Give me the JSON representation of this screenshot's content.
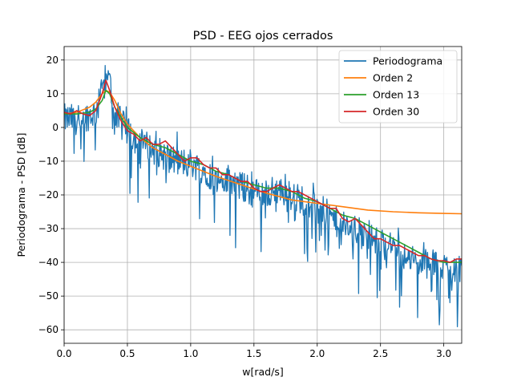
{
  "chart_data": {
    "type": "line",
    "title": "PSD - EEG ojos cerrados",
    "xlabel": "w[rad/s]",
    "ylabel": "Periodograma - PSD [dB]",
    "xlim": [
      0,
      3.1416
    ],
    "ylim": [
      -64,
      24
    ],
    "xticks": [
      0.0,
      0.5,
      1.0,
      1.5,
      2.0,
      2.5,
      3.0
    ],
    "xtick_labels": [
      "0.0",
      "0.5",
      "1.0",
      "1.5",
      "2.0",
      "2.5",
      "3.0"
    ],
    "yticks": [
      20,
      10,
      0,
      -10,
      -20,
      -30,
      -40,
      -50,
      -60
    ],
    "ytick_labels": [
      "20",
      "10",
      "0",
      "−10",
      "−20",
      "−30",
      "−40",
      "−50",
      "−60"
    ],
    "grid": true,
    "legend_position": "top-right",
    "series": [
      {
        "name": "Periodograma",
        "color": "#1f77b4",
        "style": "noisy",
        "x": [
          0.0,
          0.1,
          0.2,
          0.25,
          0.3,
          0.33,
          0.36,
          0.4,
          0.5,
          0.6,
          0.7,
          0.8,
          0.9,
          1.0,
          1.1,
          1.2,
          1.3,
          1.4,
          1.5,
          1.6,
          1.7,
          1.8,
          1.9,
          2.0,
          2.1,
          2.2,
          2.3,
          2.4,
          2.5,
          2.6,
          2.7,
          2.8,
          2.9,
          3.0,
          3.1416
        ],
        "y": [
          3,
          3,
          4,
          5,
          10,
          12,
          10,
          5,
          -1,
          -4,
          -6,
          -8,
          -10,
          -10,
          -12,
          -15,
          -16,
          -17,
          -19,
          -19,
          -18,
          -20,
          -21,
          -23,
          -26,
          -29,
          -30,
          -32,
          -34,
          -35,
          -38,
          -40,
          -40,
          -41,
          -41
        ]
      },
      {
        "name": "Orden 2",
        "color": "#ff7f0e",
        "x": [
          0.0,
          0.1,
          0.2,
          0.25,
          0.3,
          0.33,
          0.36,
          0.4,
          0.45,
          0.5,
          0.6,
          0.7,
          0.8,
          0.9,
          1.0,
          1.2,
          1.4,
          1.6,
          1.8,
          2.0,
          2.2,
          2.4,
          2.6,
          2.8,
          3.0,
          3.1416
        ],
        "y": [
          4,
          4.5,
          6,
          7.5,
          10,
          11,
          10.5,
          8,
          4,
          1,
          -3,
          -6,
          -8,
          -10,
          -11.5,
          -14.5,
          -17,
          -19.5,
          -21.5,
          -22.5,
          -23.5,
          -24.5,
          -25,
          -25.3,
          -25.5,
          -25.6
        ]
      },
      {
        "name": "Orden 13",
        "color": "#2ca02c",
        "x": [
          0.0,
          0.1,
          0.2,
          0.25,
          0.3,
          0.33,
          0.36,
          0.4,
          0.45,
          0.5,
          0.6,
          0.7,
          0.8,
          0.9,
          1.0,
          1.1,
          1.2,
          1.3,
          1.4,
          1.5,
          1.6,
          1.7,
          1.8,
          1.9,
          2.0,
          2.1,
          2.2,
          2.3,
          2.4,
          2.5,
          2.6,
          2.7,
          2.8,
          2.9,
          3.0,
          3.1416
        ],
        "y": [
          4,
          4,
          4.5,
          5.5,
          8,
          11,
          10,
          6,
          3,
          0,
          -3,
          -5,
          -6,
          -8,
          -10,
          -11,
          -13,
          -14,
          -16,
          -17,
          -18,
          -18,
          -19,
          -21,
          -22,
          -24,
          -26,
          -27,
          -29,
          -31,
          -33,
          -35,
          -37,
          -39,
          -40,
          -40
        ]
      },
      {
        "name": "Orden 30",
        "color": "#d62728",
        "x": [
          0.0,
          0.05,
          0.1,
          0.15,
          0.2,
          0.25,
          0.3,
          0.33,
          0.36,
          0.4,
          0.45,
          0.5,
          0.55,
          0.6,
          0.65,
          0.7,
          0.75,
          0.8,
          0.85,
          0.9,
          0.95,
          1.0,
          1.05,
          1.1,
          1.15,
          1.2,
          1.25,
          1.3,
          1.35,
          1.4,
          1.45,
          1.5,
          1.55,
          1.6,
          1.65,
          1.7,
          1.75,
          1.8,
          1.85,
          1.9,
          1.95,
          2.0,
          2.05,
          2.1,
          2.15,
          2.2,
          2.25,
          2.3,
          2.35,
          2.4,
          2.45,
          2.5,
          2.55,
          2.6,
          2.65,
          2.7,
          2.75,
          2.8,
          2.85,
          2.9,
          2.95,
          3.0,
          3.05,
          3.1,
          3.1416
        ],
        "y": [
          4.5,
          4,
          5,
          4,
          3.5,
          5,
          10,
          14,
          11,
          6,
          2,
          -1,
          -2,
          -4,
          -3,
          -5,
          -5,
          -4,
          -6,
          -8,
          -10,
          -9,
          -9,
          -11,
          -12,
          -12,
          -14,
          -14,
          -15,
          -16,
          -16,
          -18,
          -19,
          -19,
          -18,
          -17,
          -18,
          -19,
          -19,
          -20,
          -21,
          -22,
          -23,
          -24,
          -24,
          -27,
          -28,
          -27,
          -29,
          -31,
          -33,
          -33,
          -34,
          -35,
          -35,
          -36,
          -37,
          -38,
          -38,
          -39,
          -39.5,
          -39.5,
          -40,
          -39,
          -39
        ]
      }
    ]
  }
}
